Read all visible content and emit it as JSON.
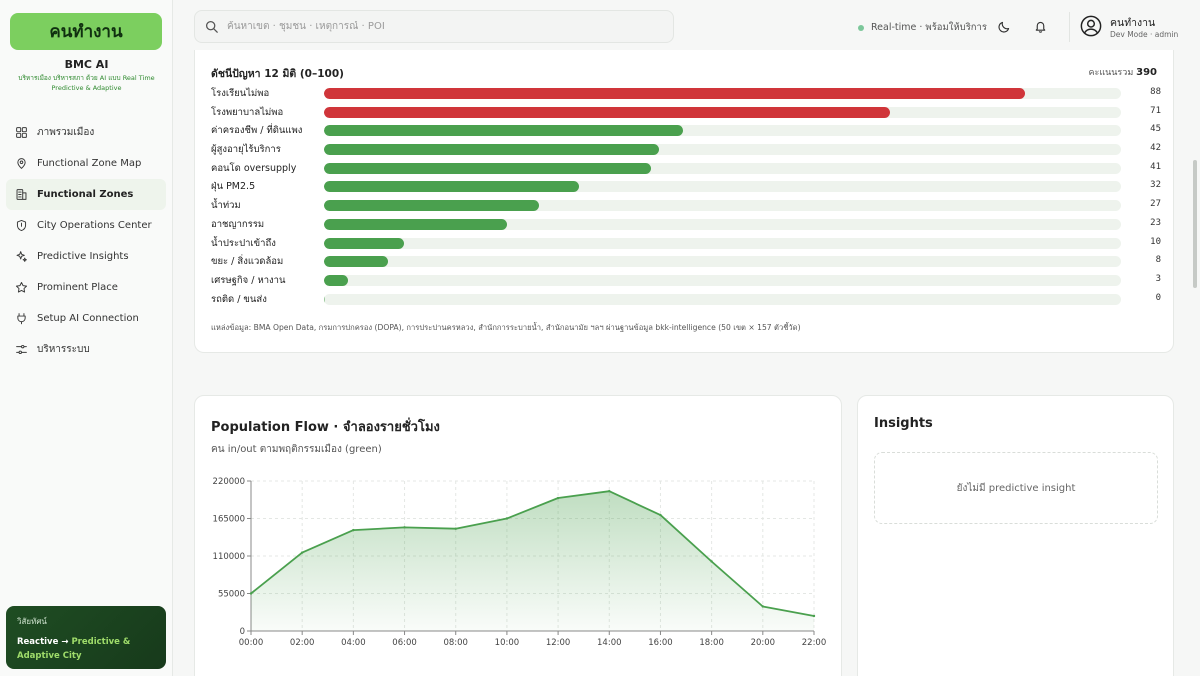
{
  "sidebar": {
    "logo": "คนทำงาน",
    "brand_title": "BMC AI",
    "brand_subtitle": "บริหารเมือง บริหารสภา ด้วย AI แบบ Real Time Predictive & Adaptive",
    "items": [
      {
        "label": "ภาพรวมเมือง",
        "icon": "grid-icon",
        "active": false
      },
      {
        "label": "Functional Zone Map",
        "icon": "map-pin-icon",
        "active": false
      },
      {
        "label": "Functional Zones",
        "icon": "building-icon",
        "active": true
      },
      {
        "label": "City Operations Center",
        "icon": "shield-icon",
        "active": false
      },
      {
        "label": "Predictive Insights",
        "icon": "sparkles-icon",
        "active": false
      },
      {
        "label": "Prominent Place",
        "icon": "star-icon",
        "active": false
      },
      {
        "label": "Setup AI Connection",
        "icon": "plug-icon",
        "active": false
      },
      {
        "label": "บริหารระบบ",
        "icon": "sliders-icon",
        "active": false
      }
    ],
    "vision": {
      "label": "วิสัยทัศน์",
      "from": "Reactive",
      "arrow": "→",
      "to_line1": "Predictive &",
      "to_line2": "Adaptive City"
    }
  },
  "header": {
    "search_placeholder": "ค้นหาเขต · ชุมชน · เหตุการณ์ · POI",
    "status_text": "Real-time · พร้อมให้บริการ",
    "status_color": "#7cc79a",
    "user_name": "คนทำงาน",
    "user_role": "Dev Mode · admin"
  },
  "index_card": {
    "title": "ดัชนีปัญหา 12 มิติ (0–100)",
    "total_label": "คะแนนรวม",
    "total_value": "390",
    "source": "แหล่งข้อมูล: BMA Open Data, กรมการปกครอง (DOPA), การประปานครหลวง, สำนักการระบายน้ำ, สำนักอนามัย ฯลฯ ผ่านฐานข้อมูล bkk-intelligence (50 เขต × 157 ตัวชี้วัด)",
    "colors": {
      "high": "#d0353a",
      "normal": "#4aa04e",
      "track": "#eef3ed"
    },
    "rows": [
      {
        "label": "โรงเรียนไม่พอ",
        "value": 88,
        "display": "88",
        "level": "high"
      },
      {
        "label": "โรงพยาบาลไม่พอ",
        "value": 71,
        "display": "71",
        "level": "high"
      },
      {
        "label": "ค่าครองชีพ / ที่ดินแพง",
        "value": 45,
        "display": "45",
        "level": "normal"
      },
      {
        "label": "ผู้สูงอายุไร้บริการ",
        "value": 42,
        "display": "42",
        "level": "normal"
      },
      {
        "label": "คอนโด oversupply",
        "value": 41,
        "display": "41",
        "level": "normal"
      },
      {
        "label": "ฝุ่น PM2.5",
        "value": 32,
        "display": "32",
        "level": "normal"
      },
      {
        "label": "น้ำท่วม",
        "value": 27,
        "display": "27",
        "level": "normal"
      },
      {
        "label": "อาชญากรรม",
        "value": 23,
        "display": "23",
        "level": "normal"
      },
      {
        "label": "น้ำประปาเข้าถึง",
        "value": 10,
        "display": "10",
        "level": "normal"
      },
      {
        "label": "ขยะ / สิ่งแวดล้อม",
        "value": 8,
        "display": "8",
        "level": "normal"
      },
      {
        "label": "เศรษฐกิจ / หางาน",
        "value": 3,
        "display": "3",
        "level": "normal"
      },
      {
        "label": "รถติด / ขนส่ง",
        "value": 0,
        "display": "0",
        "level": "normal"
      }
    ]
  },
  "population_card": {
    "title": "Population Flow · จำลองรายชั่วโมง",
    "subtitle": "คน in/out ตามพฤติกรรมเมือง (green)",
    "line_color": "#4aa04e"
  },
  "chart_data": {
    "type": "area",
    "title": "Population Flow · จำลองรายชั่วโมง",
    "xlabel": "",
    "ylabel": "",
    "x": [
      "00:00",
      "02:00",
      "04:00",
      "06:00",
      "08:00",
      "10:00",
      "12:00",
      "14:00",
      "16:00",
      "18:00",
      "20:00",
      "22:00"
    ],
    "series": [
      {
        "values": [
          55000,
          115000,
          148000,
          152000,
          150000,
          165000,
          195000,
          205000,
          170000,
          102000,
          36000,
          22000
        ]
      }
    ],
    "yticks": [
      "220000",
      "165000",
      "110000",
      "55000",
      "0"
    ],
    "ytick_values": [
      220000,
      165000,
      110000,
      55000,
      0
    ],
    "ylim": [
      0,
      220000
    ],
    "grid": true
  },
  "insights_card": {
    "title": "Insights",
    "empty_text": "ยังไม่มี predictive insight"
  }
}
